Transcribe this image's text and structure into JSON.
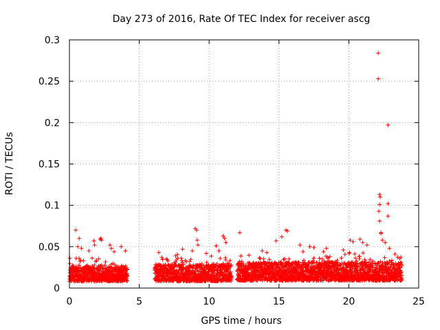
{
  "chart_data": {
    "type": "scatter",
    "title": "Day 273 of 2016, Rate Of TEC Index for receiver ascg",
    "xlabel": "GPS time / hours",
    "ylabel": "ROTI / TECUs",
    "xlim": [
      0,
      25
    ],
    "ylim": [
      0,
      0.3
    ],
    "x_ticks": [
      0,
      5,
      10,
      15,
      20,
      25
    ],
    "x_tick_labels": [
      "0",
      "5",
      "10",
      "15",
      "20",
      "25"
    ],
    "y_ticks": [
      0,
      0.05,
      0.1,
      0.15,
      0.2,
      0.25,
      0.3
    ],
    "y_tick_labels": [
      "0",
      "0.05",
      "0.1",
      "0.15",
      "0.2",
      "0.25",
      "0.3"
    ],
    "grid": true,
    "marker": "plus",
    "series_color": "#ff0000",
    "dense_segments": [
      {
        "x_start": 0.0,
        "x_end": 4.15,
        "y_min": 0.004,
        "y_max": 0.038
      },
      {
        "x_start": 6.1,
        "x_end": 11.6,
        "y_min": 0.004,
        "y_max": 0.04
      },
      {
        "x_start": 12.0,
        "x_end": 23.8,
        "y_min": 0.004,
        "y_max": 0.045
      }
    ],
    "outliers": [
      {
        "x": 0.45,
        "y": 0.07
      },
      {
        "x": 0.7,
        "y": 0.06
      },
      {
        "x": 0.85,
        "y": 0.048
      },
      {
        "x": 0.6,
        "y": 0.05
      },
      {
        "x": 1.4,
        "y": 0.045
      },
      {
        "x": 1.75,
        "y": 0.057
      },
      {
        "x": 1.8,
        "y": 0.052
      },
      {
        "x": 2.2,
        "y": 0.059
      },
      {
        "x": 2.25,
        "y": 0.06
      },
      {
        "x": 2.3,
        "y": 0.058
      },
      {
        "x": 2.9,
        "y": 0.052
      },
      {
        "x": 3.0,
        "y": 0.048
      },
      {
        "x": 3.2,
        "y": 0.044
      },
      {
        "x": 3.7,
        "y": 0.05
      },
      {
        "x": 4.0,
        "y": 0.045
      },
      {
        "x": 6.4,
        "y": 0.043
      },
      {
        "x": 7.6,
        "y": 0.039
      },
      {
        "x": 8.1,
        "y": 0.047
      },
      {
        "x": 8.8,
        "y": 0.045
      },
      {
        "x": 9.0,
        "y": 0.072
      },
      {
        "x": 9.1,
        "y": 0.07
      },
      {
        "x": 9.15,
        "y": 0.058
      },
      {
        "x": 9.2,
        "y": 0.052
      },
      {
        "x": 9.8,
        "y": 0.042
      },
      {
        "x": 10.5,
        "y": 0.051
      },
      {
        "x": 10.7,
        "y": 0.045
      },
      {
        "x": 11.0,
        "y": 0.063
      },
      {
        "x": 11.1,
        "y": 0.06
      },
      {
        "x": 11.2,
        "y": 0.055
      },
      {
        "x": 12.2,
        "y": 0.067
      },
      {
        "x": 13.8,
        "y": 0.045
      },
      {
        "x": 14.8,
        "y": 0.057
      },
      {
        "x": 15.2,
        "y": 0.062
      },
      {
        "x": 15.5,
        "y": 0.07
      },
      {
        "x": 15.6,
        "y": 0.069
      },
      {
        "x": 16.5,
        "y": 0.052
      },
      {
        "x": 17.2,
        "y": 0.05
      },
      {
        "x": 17.5,
        "y": 0.049
      },
      {
        "x": 18.4,
        "y": 0.048
      },
      {
        "x": 19.6,
        "y": 0.046
      },
      {
        "x": 20.1,
        "y": 0.058
      },
      {
        "x": 20.3,
        "y": 0.056
      },
      {
        "x": 20.8,
        "y": 0.059
      },
      {
        "x": 21.0,
        "y": 0.055
      },
      {
        "x": 21.3,
        "y": 0.052
      },
      {
        "x": 22.1,
        "y": 0.284
      },
      {
        "x": 22.1,
        "y": 0.253
      },
      {
        "x": 22.8,
        "y": 0.197
      },
      {
        "x": 22.2,
        "y": 0.113
      },
      {
        "x": 22.25,
        "y": 0.11
      },
      {
        "x": 22.2,
        "y": 0.101
      },
      {
        "x": 22.8,
        "y": 0.102
      },
      {
        "x": 22.15,
        "y": 0.093
      },
      {
        "x": 22.8,
        "y": 0.087
      },
      {
        "x": 22.2,
        "y": 0.081
      },
      {
        "x": 22.3,
        "y": 0.067
      },
      {
        "x": 22.3,
        "y": 0.066
      },
      {
        "x": 22.4,
        "y": 0.058
      },
      {
        "x": 22.6,
        "y": 0.055
      },
      {
        "x": 22.9,
        "y": 0.048
      },
      {
        "x": 23.3,
        "y": 0.041
      }
    ]
  }
}
